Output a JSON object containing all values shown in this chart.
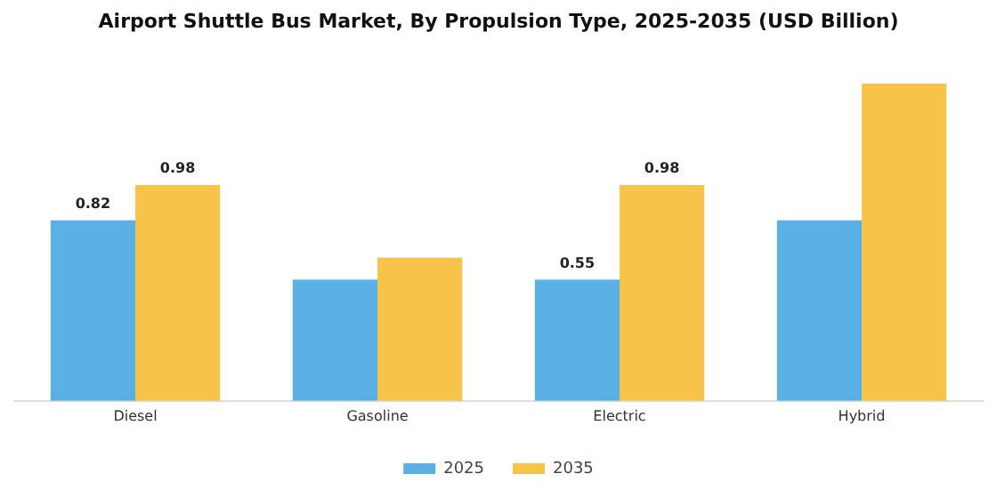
{
  "chart_data": {
    "type": "bar",
    "title": "Airport Shuttle Bus Market, By Propulsion Type, 2025-2035 (USD Billion)",
    "categories": [
      "Diesel",
      "Gasoline",
      "Electric",
      "Hybrid"
    ],
    "series": [
      {
        "name": "2025",
        "color": "#5ab0e5",
        "values": [
          0.82,
          0.55,
          0.55,
          0.82
        ],
        "value_labels": [
          "0.82",
          null,
          "0.55",
          null
        ]
      },
      {
        "name": "2035",
        "color": "#f8c349",
        "values": [
          0.98,
          0.65,
          0.98,
          1.44
        ],
        "value_labels": [
          "0.98",
          null,
          "0.98",
          null
        ]
      }
    ],
    "grid": false,
    "legend": "bottom"
  }
}
